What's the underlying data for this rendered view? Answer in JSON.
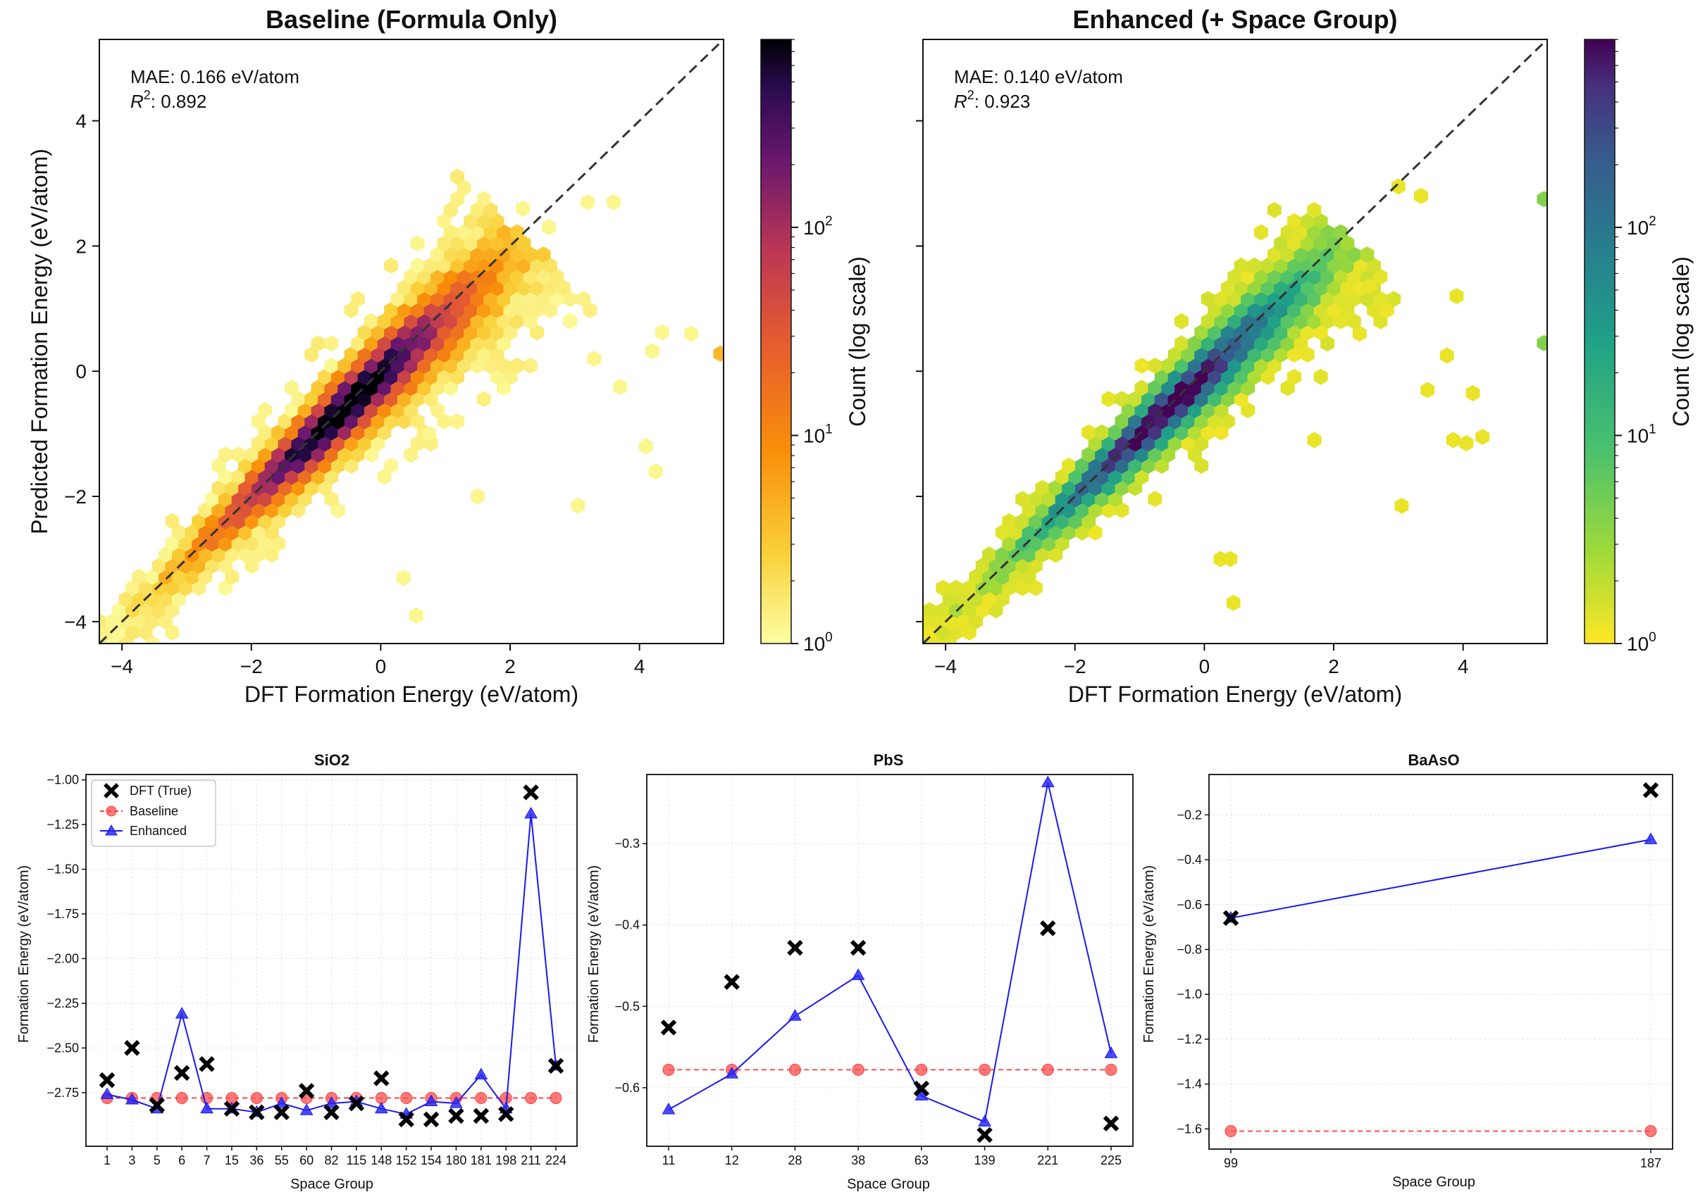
{
  "chart_data": [
    {
      "type": "hexbin",
      "title": "Baseline (Formula Only)",
      "xlabel": "DFT Formation Energy (eV/atom)",
      "ylabel": "Predicted Formation Energy (eV/atom)",
      "xlim": [
        -4.35,
        5.3
      ],
      "ylim": [
        -4.35,
        5.3
      ],
      "xticks": [
        "−4",
        "−2",
        "0",
        "2",
        "4"
      ],
      "yticks": [
        "−4",
        "−2",
        "0",
        "2",
        "4"
      ],
      "annotations": {
        "mae": "MAE: 0.166 eV/atom",
        "r2_label": "R",
        "r2_value": ": 0.892"
      },
      "colorbar": {
        "label": "Count (log scale)",
        "scale": "log",
        "range": [
          1,
          800
        ],
        "colormap": "inferno_r",
        "ticks": [
          "10",
          "10",
          "10"
        ],
        "tick_exponents": [
          "0",
          "1",
          "2"
        ]
      },
      "diagonal": "y = x",
      "outliers": [
        [
          5.25,
          0.28
        ],
        [
          4.8,
          0.6
        ],
        [
          4.35,
          0.62
        ],
        [
          4.2,
          0.32
        ],
        [
          4.1,
          -1.2
        ],
        [
          4.25,
          -1.6
        ],
        [
          3.7,
          -0.25
        ],
        [
          3.3,
          0.2
        ],
        [
          3.05,
          -2.15
        ],
        [
          3.6,
          2.7
        ],
        [
          3.2,
          2.7
        ],
        [
          2.2,
          2.6
        ],
        [
          2.6,
          2.3
        ],
        [
          1.5,
          -2.0
        ],
        [
          0.75,
          -1.0
        ],
        [
          0.35,
          -3.3
        ],
        [
          0.55,
          -3.9
        ]
      ]
    },
    {
      "type": "hexbin",
      "title": "Enhanced (+ Space Group)",
      "xlabel": "DFT Formation Energy (eV/atom)",
      "ylabel": "",
      "xlim": [
        -4.35,
        5.3
      ],
      "ylim": [
        -4.35,
        5.3
      ],
      "xticks": [
        "−4",
        "−2",
        "0",
        "2",
        "4"
      ],
      "annotations": {
        "mae": "MAE: 0.140 eV/atom",
        "r2_label": "R",
        "r2_value": ": 0.923"
      },
      "colorbar": {
        "label": "Count (log scale)",
        "scale": "log",
        "range": [
          1,
          800
        ],
        "colormap": "viridis_r",
        "ticks": [
          "10",
          "10",
          "10"
        ],
        "tick_exponents": [
          "0",
          "1",
          "2"
        ]
      },
      "diagonal": "y = x",
      "outliers": [
        [
          5.25,
          2.75
        ],
        [
          5.25,
          0.45
        ],
        [
          4.3,
          -1.05
        ],
        [
          4.15,
          -0.35
        ],
        [
          4.05,
          -1.15
        ],
        [
          3.85,
          -1.1
        ],
        [
          3.75,
          0.25
        ],
        [
          3.9,
          1.2
        ],
        [
          3.45,
          -0.3
        ],
        [
          3.05,
          -2.15
        ],
        [
          3.35,
          2.8
        ],
        [
          3.0,
          2.95
        ],
        [
          2.55,
          1.35
        ],
        [
          2.4,
          0.6
        ],
        [
          1.7,
          -1.1
        ],
        [
          0.45,
          -3.7
        ],
        [
          0.4,
          -3.0
        ],
        [
          0.25,
          -3.0
        ]
      ]
    },
    {
      "type": "line-scatter",
      "title": "SiO2",
      "xlabel": "Space Group",
      "ylabel": "Formation Energy (eV/atom)",
      "categories": [
        "1",
        "3",
        "5",
        "6",
        "7",
        "15",
        "36",
        "55",
        "60",
        "82",
        "115",
        "148",
        "152",
        "154",
        "180",
        "181",
        "198",
        "211",
        "224"
      ],
      "ylim": [
        -3.05,
        -0.97
      ],
      "yticks": [
        "−2.75",
        "−2.50",
        "−2.25",
        "−2.00",
        "−1.75",
        "−1.50",
        "−1.25",
        "−1.00"
      ],
      "series": [
        {
          "name": "DFT (True)",
          "marker": "X",
          "color": "#000000",
          "values": [
            -2.68,
            -2.5,
            -2.82,
            -2.64,
            -2.59,
            -2.84,
            -2.86,
            -2.86,
            -2.74,
            -2.86,
            -2.81,
            -2.67,
            -2.9,
            -2.9,
            -2.88,
            -2.88,
            -2.87,
            -1.07,
            -2.6
          ]
        },
        {
          "name": "Baseline",
          "marker": "circle",
          "color": "#ff3b3b",
          "line": "dashed",
          "values": [
            -2.78,
            -2.78,
            -2.78,
            -2.78,
            -2.78,
            -2.78,
            -2.78,
            -2.78,
            -2.78,
            -2.78,
            -2.78,
            -2.78,
            -2.78,
            -2.78,
            -2.78,
            -2.78,
            -2.78,
            -2.78,
            -2.78
          ]
        },
        {
          "name": "Enhanced",
          "marker": "triangle",
          "color": "#1a1aee",
          "line": "solid",
          "values": [
            -2.76,
            -2.79,
            -2.84,
            -2.31,
            -2.84,
            -2.84,
            -2.86,
            -2.81,
            -2.85,
            -2.81,
            -2.8,
            -2.84,
            -2.87,
            -2.8,
            -2.81,
            -2.65,
            -2.84,
            -1.19,
            -2.6
          ]
        }
      ],
      "legend": "upper-left"
    },
    {
      "type": "line-scatter",
      "title": "PbS",
      "xlabel": "Space Group",
      "ylabel": "Formation Energy (eV/atom)",
      "categories": [
        "11",
        "12",
        "28",
        "38",
        "63",
        "139",
        "221",
        "225"
      ],
      "ylim": [
        -0.672,
        -0.215
      ],
      "yticks": [
        "−0.6",
        "−0.5",
        "−0.4",
        "−0.3"
      ],
      "series": [
        {
          "name": "DFT (True)",
          "marker": "X",
          "color": "#000000",
          "values": [
            -0.526,
            -0.47,
            -0.428,
            -0.428,
            -0.601,
            -0.658,
            -0.404,
            -0.644
          ]
        },
        {
          "name": "Baseline",
          "marker": "circle",
          "color": "#ff3b3b",
          "line": "dashed",
          "values": [
            -0.578,
            -0.578,
            -0.578,
            -0.578,
            -0.578,
            -0.578,
            -0.578,
            -0.578
          ]
        },
        {
          "name": "Enhanced",
          "marker": "triangle",
          "color": "#1a1aee",
          "line": "solid",
          "values": [
            -0.627,
            -0.583,
            -0.512,
            -0.462,
            -0.61,
            -0.642,
            -0.225,
            -0.558
          ]
        }
      ]
    },
    {
      "type": "line-scatter",
      "title": "BaAsO",
      "xlabel": "Space Group",
      "ylabel": "Formation Energy (eV/atom)",
      "categories": [
        "99",
        "187"
      ],
      "ylim": [
        -1.69,
        -0.02
      ],
      "yticks": [
        "−1.6",
        "−1.4",
        "−1.2",
        "−1.0",
        "−0.8",
        "−0.6",
        "−0.4",
        "−0.2"
      ],
      "series": [
        {
          "name": "DFT (True)",
          "marker": "X",
          "color": "#000000",
          "values": [
            -0.66,
            -0.09
          ]
        },
        {
          "name": "Baseline",
          "marker": "circle",
          "color": "#ff3b3b",
          "line": "dashed",
          "values": [
            -1.61,
            -1.61
          ]
        },
        {
          "name": "Enhanced",
          "marker": "triangle",
          "color": "#1a1aee",
          "line": "solid",
          "values": [
            -0.66,
            -0.31
          ]
        }
      ]
    }
  ]
}
